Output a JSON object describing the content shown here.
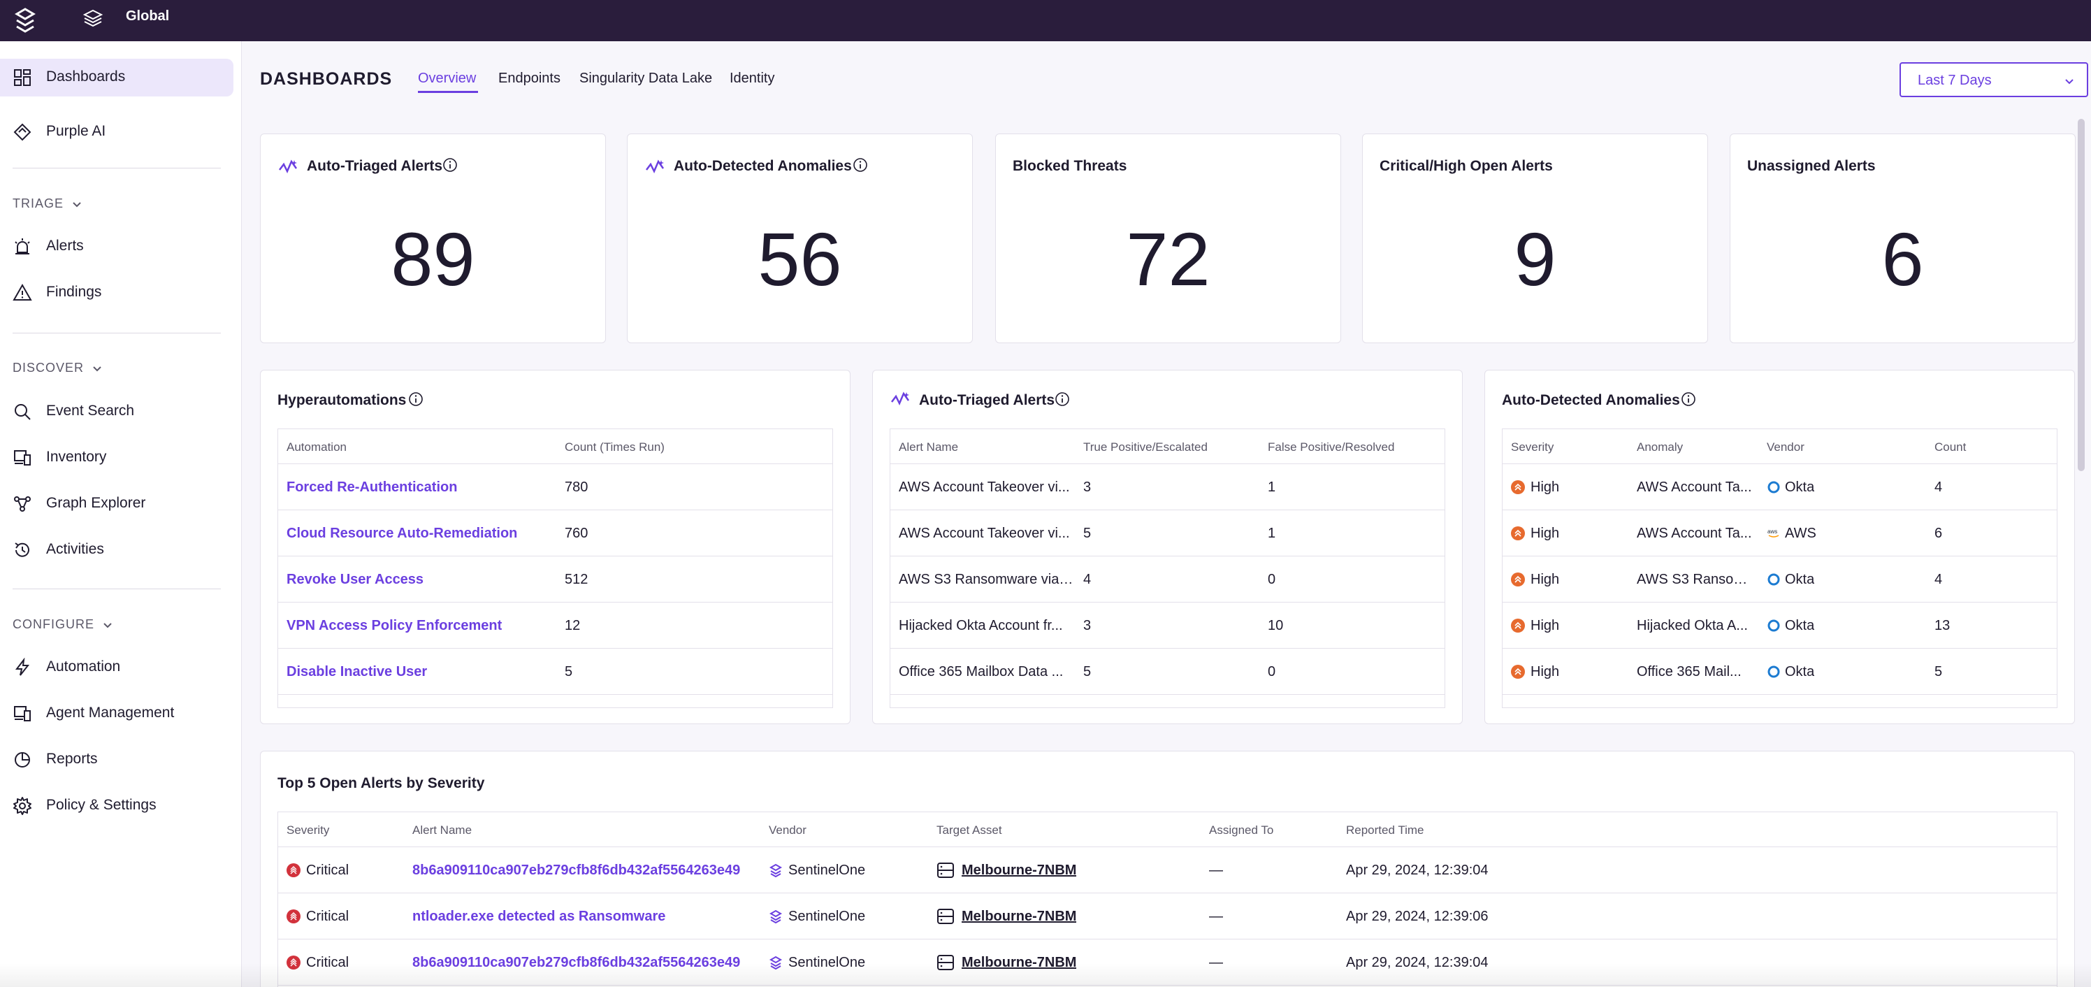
{
  "topbar": {
    "scope_label": "Global"
  },
  "sidebar": {
    "items": [
      {
        "label": "Dashboards",
        "icon": "grid-icon"
      },
      {
        "label": "Purple AI",
        "icon": "purple-ai-icon"
      },
      {
        "label": "Alerts",
        "icon": "alarm-icon"
      },
      {
        "label": "Findings",
        "icon": "warning-icon"
      },
      {
        "label": "Event Search",
        "icon": "search-icon"
      },
      {
        "label": "Inventory",
        "icon": "devices-icon"
      },
      {
        "label": "Graph Explorer",
        "icon": "graph-icon"
      },
      {
        "label": "Activities",
        "icon": "history-icon"
      },
      {
        "label": "Automation",
        "icon": "lightning-icon"
      },
      {
        "label": "Agent Management",
        "icon": "agent-icon"
      },
      {
        "label": "Reports",
        "icon": "pie-chart-icon"
      },
      {
        "label": "Policy & Settings",
        "icon": "gear-icon"
      }
    ],
    "sections": {
      "triage": "TRIAGE",
      "discover": "DISCOVER",
      "configure": "CONFIGURE"
    }
  },
  "header": {
    "title": "DASHBOARDS",
    "tabs": [
      "Overview",
      "Endpoints",
      "Singularity Data Lake",
      "Identity"
    ],
    "time_range": "Last 7 Days"
  },
  "stat_cards": [
    {
      "title": "Auto-Triaged Alerts",
      "value": "89"
    },
    {
      "title": "Auto-Detected Anomalies",
      "value": "56"
    },
    {
      "title": "Blocked Threats",
      "value": "72"
    },
    {
      "title": "Critical/High Open Alerts",
      "value": "9"
    },
    {
      "title": "Unassigned Alerts",
      "value": "6"
    }
  ],
  "hyperautomations": {
    "title": "Hyperautomations",
    "columns": [
      "Automation",
      "Count (Times Run)"
    ],
    "rows": [
      {
        "name": "Forced Re-Authentication",
        "count": "780"
      },
      {
        "name": "Cloud Resource Auto-Remediation",
        "count": "760"
      },
      {
        "name": "Revoke User Access",
        "count": "512"
      },
      {
        "name": "VPN Access Policy Enforcement",
        "count": "12"
      },
      {
        "name": "Disable Inactive User",
        "count": "5"
      }
    ]
  },
  "auto_triaged": {
    "title": "Auto-Triaged Alerts",
    "columns": [
      "Alert Name",
      "True Positive/Escalated",
      "False Positive/Resolved"
    ],
    "rows": [
      {
        "name": "AWS Account Takeover vi...",
        "tp": "3",
        "fp": "1"
      },
      {
        "name": "AWS Account Takeover vi...",
        "tp": "5",
        "fp": "1"
      },
      {
        "name": "AWS S3 Ransomware via ...",
        "tp": "4",
        "fp": "0"
      },
      {
        "name": "Hijacked Okta Account fr...",
        "tp": "3",
        "fp": "10"
      },
      {
        "name": "Office 365 Mailbox Data ...",
        "tp": "5",
        "fp": "0"
      }
    ]
  },
  "auto_detected": {
    "title": "Auto-Detected Anomalies",
    "columns": [
      "Severity",
      "Anomaly",
      "Vendor",
      "Count"
    ],
    "rows": [
      {
        "severity": "High",
        "anomaly": "AWS Account Ta...",
        "vendor": "Okta",
        "vendor_icon": "okta-icon",
        "count": "4"
      },
      {
        "severity": "High",
        "anomaly": "AWS Account Ta...",
        "vendor": "AWS",
        "vendor_icon": "aws-icon",
        "count": "6"
      },
      {
        "severity": "High",
        "anomaly": "AWS S3 Ransom...",
        "vendor": "Okta",
        "vendor_icon": "okta-icon",
        "count": "4"
      },
      {
        "severity": "High",
        "anomaly": "Hijacked Okta A...",
        "vendor": "Okta",
        "vendor_icon": "okta-icon",
        "count": "13"
      },
      {
        "severity": "High",
        "anomaly": "Office 365 Mail...",
        "vendor": "Okta",
        "vendor_icon": "okta-icon",
        "count": "5"
      }
    ]
  },
  "top_alerts": {
    "title": "Top 5 Open Alerts by Severity",
    "columns": [
      "Severity",
      "Alert Name",
      "Vendor",
      "Target Asset",
      "Assigned To",
      "Reported Time"
    ],
    "rows": [
      {
        "severity": "Critical",
        "name": "8b6a909110ca907eb279cfb8f6db432af5564263e49",
        "vendor": "SentinelOne",
        "asset": "Melbourne-7NBM",
        "assigned": "—",
        "time": "Apr 29, 2024, 12:39:04"
      },
      {
        "severity": "Critical",
        "name": "ntloader.exe detected as Ransomware",
        "vendor": "SentinelOne",
        "asset": "Melbourne-7NBM",
        "assigned": "—",
        "time": "Apr 29, 2024, 12:39:06"
      },
      {
        "severity": "Critical",
        "name": "8b6a909110ca907eb279cfb8f6db432af5564263e49",
        "vendor": "SentinelOne",
        "asset": "Melbourne-7NBM",
        "assigned": "—",
        "time": "Apr 29, 2024, 12:39:04"
      }
    ]
  },
  "colors": {
    "accent": "#6b3fe0",
    "topbar": "#2a1d3c",
    "high": "#e76a2e",
    "critical": "#d2323c"
  }
}
